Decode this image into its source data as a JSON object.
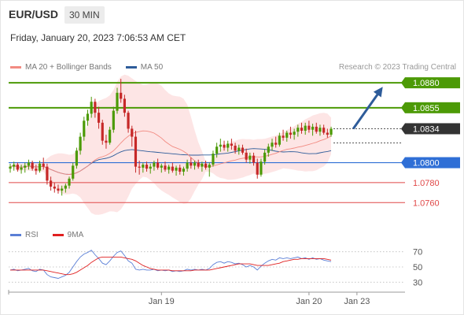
{
  "header": {
    "symbol": "EUR/USD",
    "timeframe": "30 MIN",
    "datetime": "Friday, January 20, 2023 7:06:53 AM CET",
    "copyright": "Research © 2023 Trading Central"
  },
  "legend_main": [
    {
      "label": "MA 20 + Bollinger Bands",
      "color": "#f28b82"
    },
    {
      "label": "MA 50",
      "color": "#2e5c9a"
    }
  ],
  "legend_rsi": [
    {
      "label": "RSI",
      "color": "#5b7fd6"
    },
    {
      "label": "9MA",
      "color": "#e02020"
    }
  ],
  "chart_data": {
    "type": "candlestick",
    "ylim": [
      1.0746,
      1.0888
    ],
    "current_price": {
      "value": 1.0834,
      "label": "1.0834",
      "color": "#333333"
    },
    "levels": [
      {
        "value": 1.088,
        "label": "1.0880",
        "color": "#4c9a06",
        "kind": "resistance"
      },
      {
        "value": 1.0855,
        "label": "1.0855",
        "color": "#4c9a06",
        "kind": "resistance"
      },
      {
        "value": 1.08,
        "label": "1.0800",
        "color": "#2f6fd6",
        "kind": "pivot"
      },
      {
        "value": 1.078,
        "label": "1.0780",
        "color": "#e04848",
        "kind": "support"
      },
      {
        "value": 1.076,
        "label": "1.0760",
        "color": "#e04848",
        "kind": "support"
      }
    ],
    "x_ticks": [
      {
        "label": "Jan 19",
        "index": 41
      },
      {
        "label": "Jan 20",
        "index": 81
      },
      {
        "label": "Jan 23",
        "index": 94
      }
    ],
    "forecast_arrow": {
      "from_index": 93,
      "from_value": 1.0834,
      "to_index": 101,
      "to_value": 1.0876,
      "color": "#2e5c9a"
    },
    "ohlc": [
      [
        1.0794,
        1.0799,
        1.079,
        1.0796
      ],
      [
        1.0796,
        1.0801,
        1.0792,
        1.0798
      ],
      [
        1.0798,
        1.08,
        1.0791,
        1.0793
      ],
      [
        1.0793,
        1.0798,
        1.0789,
        1.0795
      ],
      [
        1.0795,
        1.08,
        1.079,
        1.0797
      ],
      [
        1.0797,
        1.0803,
        1.0793,
        1.08
      ],
      [
        1.08,
        1.0802,
        1.0792,
        1.0794
      ],
      [
        1.0794,
        1.0798,
        1.0788,
        1.0792
      ],
      [
        1.0792,
        1.0802,
        1.079,
        1.0799
      ],
      [
        1.0799,
        1.0805,
        1.0793,
        1.0796
      ],
      [
        1.0796,
        1.0799,
        1.0778,
        1.0782
      ],
      [
        1.0782,
        1.0786,
        1.0772,
        1.0776
      ],
      [
        1.0776,
        1.078,
        1.077,
        1.0774
      ],
      [
        1.0774,
        1.0778,
        1.0769,
        1.0772
      ],
      [
        1.0772,
        1.0777,
        1.0767,
        1.0774
      ],
      [
        1.0774,
        1.0779,
        1.077,
        1.0777
      ],
      [
        1.0777,
        1.0786,
        1.0774,
        1.0784
      ],
      [
        1.0784,
        1.08,
        1.0782,
        1.0797
      ],
      [
        1.0797,
        1.0815,
        1.0794,
        1.0812
      ],
      [
        1.0812,
        1.083,
        1.0808,
        1.0826
      ],
      [
        1.0826,
        1.0846,
        1.0822,
        1.0842
      ],
      [
        1.0842,
        1.0853,
        1.0837,
        1.0849
      ],
      [
        1.0849,
        1.0866,
        1.0845,
        1.0861
      ],
      [
        1.0861,
        1.0864,
        1.0845,
        1.085
      ],
      [
        1.085,
        1.0856,
        1.0834,
        1.084
      ],
      [
        1.084,
        1.0843,
        1.0818,
        1.0822
      ],
      [
        1.0822,
        1.0828,
        1.0814,
        1.082
      ],
      [
        1.082,
        1.0836,
        1.0818,
        1.0833
      ],
      [
        1.0833,
        1.0856,
        1.083,
        1.0852
      ],
      [
        1.0852,
        1.0875,
        1.0849,
        1.087
      ],
      [
        1.087,
        1.0884,
        1.086,
        1.0864
      ],
      [
        1.0864,
        1.0868,
        1.0846,
        1.085
      ],
      [
        1.085,
        1.0852,
        1.083,
        1.0834
      ],
      [
        1.0834,
        1.0837,
        1.0816,
        1.0826
      ],
      [
        1.0826,
        1.0832,
        1.079,
        1.0796
      ],
      [
        1.0796,
        1.0802,
        1.0788,
        1.0795
      ],
      [
        1.0795,
        1.08,
        1.079,
        1.0798
      ],
      [
        1.0798,
        1.0801,
        1.0791,
        1.0794
      ],
      [
        1.0794,
        1.0799,
        1.0789,
        1.0796
      ],
      [
        1.0796,
        1.0802,
        1.0792,
        1.08
      ],
      [
        1.08,
        1.0804,
        1.0793,
        1.0795
      ],
      [
        1.0795,
        1.0799,
        1.079,
        1.0797
      ],
      [
        1.0797,
        1.0801,
        1.0791,
        1.0793
      ],
      [
        1.0793,
        1.0798,
        1.0789,
        1.0796
      ],
      [
        1.0796,
        1.08,
        1.079,
        1.0792
      ],
      [
        1.0792,
        1.0797,
        1.0787,
        1.0795
      ],
      [
        1.0795,
        1.0798,
        1.0788,
        1.0791
      ],
      [
        1.0791,
        1.0796,
        1.0787,
        1.0794
      ],
      [
        1.0794,
        1.0803,
        1.0791,
        1.08
      ],
      [
        1.08,
        1.0805,
        1.0794,
        1.0797
      ],
      [
        1.0797,
        1.0802,
        1.0793,
        1.08
      ],
      [
        1.08,
        1.0803,
        1.0794,
        1.0796
      ],
      [
        1.0796,
        1.0801,
        1.0791,
        1.0799
      ],
      [
        1.0799,
        1.0802,
        1.0793,
        1.0795
      ],
      [
        1.0795,
        1.08,
        1.0786,
        1.0798
      ],
      [
        1.0798,
        1.0812,
        1.0796,
        1.0809
      ],
      [
        1.0809,
        1.082,
        1.0805,
        1.0816
      ],
      [
        1.0816,
        1.0824,
        1.0811,
        1.0818
      ],
      [
        1.0818,
        1.0822,
        1.0812,
        1.0815
      ],
      [
        1.0815,
        1.0822,
        1.0811,
        1.0819
      ],
      [
        1.0819,
        1.0824,
        1.0813,
        1.0817
      ],
      [
        1.0817,
        1.082,
        1.0809,
        1.0812
      ],
      [
        1.0812,
        1.0818,
        1.0808,
        1.0815
      ],
      [
        1.0815,
        1.0818,
        1.0808,
        1.081
      ],
      [
        1.081,
        1.0814,
        1.08,
        1.0803
      ],
      [
        1.0803,
        1.081,
        1.0799,
        1.0807
      ],
      [
        1.0807,
        1.081,
        1.0797,
        1.08
      ],
      [
        1.08,
        1.0804,
        1.0784,
        1.0788
      ],
      [
        1.0788,
        1.0804,
        1.0786,
        1.0801
      ],
      [
        1.0801,
        1.0813,
        1.0798,
        1.081
      ],
      [
        1.081,
        1.0819,
        1.0806,
        1.0816
      ],
      [
        1.0816,
        1.0824,
        1.0812,
        1.082
      ],
      [
        1.082,
        1.0826,
        1.0815,
        1.0818
      ],
      [
        1.0818,
        1.083,
        1.0816,
        1.0827
      ],
      [
        1.0827,
        1.0833,
        1.0822,
        1.0825
      ],
      [
        1.0825,
        1.0832,
        1.0821,
        1.083
      ],
      [
        1.083,
        1.0836,
        1.0824,
        1.0828
      ],
      [
        1.0828,
        1.0834,
        1.0823,
        1.0831
      ],
      [
        1.0831,
        1.0838,
        1.0826,
        1.0835
      ],
      [
        1.0835,
        1.084,
        1.0829,
        1.0832
      ],
      [
        1.0832,
        1.084,
        1.0828,
        1.0837
      ],
      [
        1.0837,
        1.0842,
        1.083,
        1.0833
      ],
      [
        1.0833,
        1.0839,
        1.0827,
        1.0836
      ],
      [
        1.0836,
        1.084,
        1.0829,
        1.0831
      ],
      [
        1.0831,
        1.0838,
        1.0827,
        1.0835
      ],
      [
        1.0835,
        1.0838,
        1.0828,
        1.083
      ],
      [
        1.083,
        1.0834,
        1.0825,
        1.0828
      ],
      [
        1.0828,
        1.0836,
        1.0826,
        1.0834
      ]
    ],
    "rsi": {
      "ylim": [
        20,
        80
      ],
      "ticks": [
        70,
        50,
        30
      ],
      "values": [
        46,
        47,
        45,
        46,
        47,
        48,
        45,
        44,
        47,
        46,
        40,
        37,
        36,
        35,
        37,
        39,
        43,
        50,
        57,
        63,
        67,
        69,
        72,
        66,
        61,
        55,
        53,
        58,
        64,
        69,
        71,
        65,
        58,
        55,
        47,
        46,
        47,
        46,
        46,
        47,
        45,
        46,
        45,
        46,
        44,
        45,
        44,
        45,
        47,
        46,
        47,
        46,
        47,
        46,
        48,
        53,
        56,
        57,
        55,
        57,
        56,
        54,
        55,
        53,
        50,
        52,
        50,
        46,
        51,
        55,
        58,
        60,
        59,
        62,
        61,
        62,
        61,
        62,
        63,
        61,
        62,
        60,
        62,
        60,
        61,
        59,
        58,
        57
      ],
      "ma9": [
        46,
        46,
        46,
        46,
        46,
        46,
        46,
        46,
        46,
        46,
        45,
        44,
        43,
        42,
        41,
        40,
        40,
        41,
        43,
        46,
        49,
        52,
        56,
        59,
        62,
        63,
        63,
        63,
        63,
        63,
        63,
        62,
        61,
        60,
        58,
        55,
        52,
        50,
        48,
        47,
        46,
        46,
        46,
        46,
        45,
        45,
        45,
        45,
        45,
        45,
        46,
        46,
        46,
        46,
        46,
        47,
        48,
        49,
        50,
        51,
        52,
        53,
        54,
        54,
        54,
        54,
        53,
        52,
        52,
        52,
        52,
        53,
        54,
        55,
        57,
        58,
        59,
        60,
        60,
        61,
        61,
        61,
        61,
        61,
        61,
        61,
        60,
        59
      ]
    }
  }
}
